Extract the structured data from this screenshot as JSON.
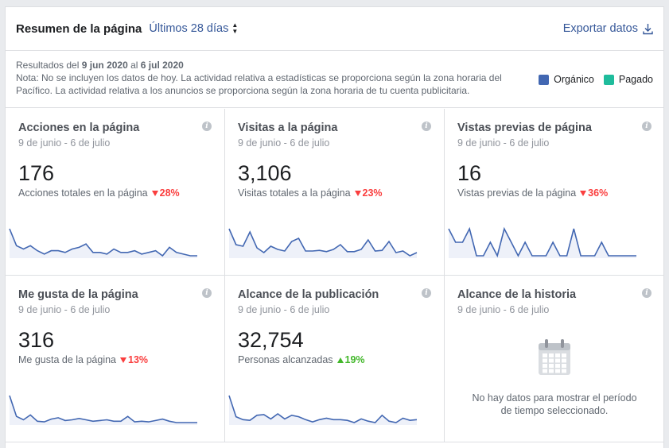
{
  "header": {
    "title": "Resumen de la página",
    "range_label": "Últimos 28 días",
    "export_label": "Exportar datos"
  },
  "notes": {
    "results_prefix": "Resultados del",
    "start": "9 jun 2020",
    "mid": "al",
    "end": "6 jul 2020",
    "note": "Nota: No se incluyen los datos de hoy. La actividad relativa a estadísticas se proporciona según la zona horaria del Pacífico. La actividad relativa a los anuncios se proporciona según la zona horaria de tu cuenta publicitaria."
  },
  "legend": {
    "organic_label": "Orgánico",
    "organic_color": "#4267b2",
    "paid_label": "Pagado",
    "paid_color": "#1fbc9c"
  },
  "cards": [
    {
      "title": "Acciones en la página",
      "period": "9 de junio - 6 de julio",
      "value": "176",
      "desc": "Acciones totales en la página",
      "delta": "28%",
      "dir": "down",
      "spark": [
        17,
        7,
        5,
        7,
        4,
        2,
        4,
        4,
        3,
        5,
        6,
        8,
        3,
        3,
        2,
        5,
        3,
        3,
        4,
        2,
        3,
        4,
        1,
        6,
        3,
        2,
        1,
        1
      ]
    },
    {
      "title": "Visitas a la página",
      "period": "9 de junio - 6 de julio",
      "value": "3,106",
      "desc": "Visitas totales a la página",
      "delta": "23%",
      "dir": "down",
      "spark": [
        110,
        60,
        55,
        100,
        50,
        35,
        55,
        45,
        40,
        70,
        80,
        40,
        40,
        42,
        38,
        45,
        60,
        38,
        38,
        45,
        75,
        40,
        42,
        70,
        35,
        40,
        25,
        35
      ]
    },
    {
      "title": "Vistas previas de página",
      "period": "9 de junio - 6 de julio",
      "value": "16",
      "desc": "Vistas previas de la página",
      "delta": "36%",
      "dir": "down",
      "spark": [
        2,
        1,
        1,
        2,
        0,
        0,
        1,
        0,
        2,
        1,
        0,
        1,
        0,
        0,
        0,
        1,
        0,
        0,
        2,
        0,
        0,
        0,
        1,
        0,
        0,
        0,
        0,
        0
      ]
    },
    {
      "title": "Me gusta de la página",
      "period": "9 de junio - 6 de julio",
      "value": "316",
      "desc": "Me gusta de la página",
      "delta": "13%",
      "dir": "down",
      "spark": [
        40,
        10,
        5,
        12,
        3,
        2,
        6,
        8,
        4,
        5,
        7,
        5,
        3,
        4,
        5,
        3,
        3,
        10,
        2,
        3,
        2,
        4,
        6,
        3,
        1,
        1,
        1,
        1
      ]
    },
    {
      "title": "Alcance de la publicación",
      "period": "9 de junio - 6 de julio",
      "value": "32,754",
      "desc": "Personas alcanzadas",
      "delta": "19%",
      "dir": "up",
      "spark": [
        4200,
        1300,
        900,
        800,
        1500,
        1600,
        1000,
        1700,
        1000,
        1500,
        1300,
        900,
        600,
        900,
        1100,
        900,
        900,
        800,
        500,
        1000,
        700,
        500,
        1500,
        700,
        500,
        1100,
        800,
        900
      ]
    },
    {
      "title": "Alcance de la historia",
      "period": "9 de junio - 6 de julio",
      "empty": "No hay datos para mostrar el período de tiempo seleccionado."
    }
  ]
}
